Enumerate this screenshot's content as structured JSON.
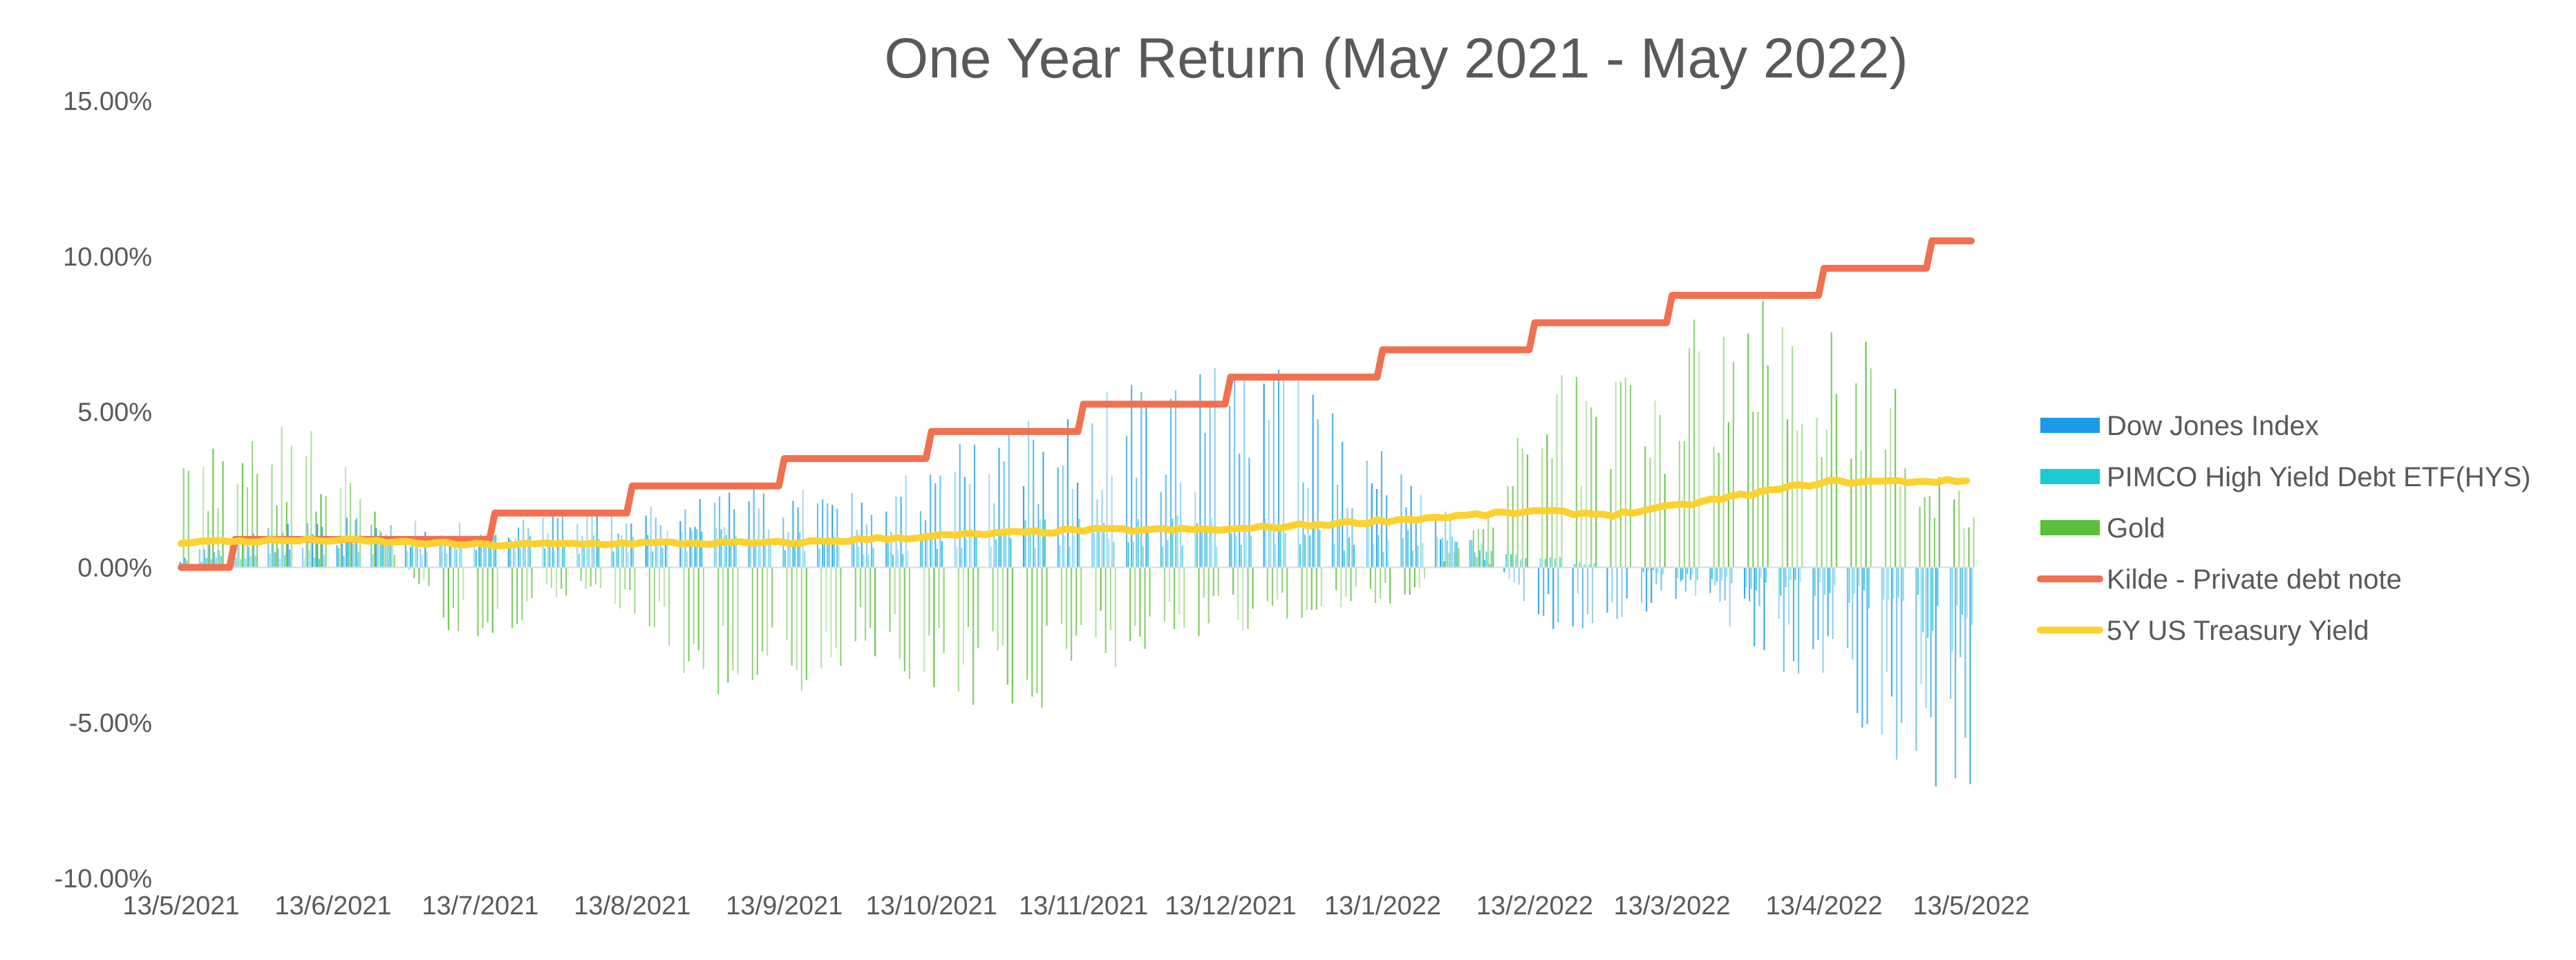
{
  "chart_data": {
    "type": "bar",
    "title": "One Year Return (May 2021 - May 2022)",
    "xlabel": "",
    "ylabel": "",
    "ylim": [
      -10,
      15
    ],
    "y_ticks": [
      {
        "value": 15,
        "label": "15.00%"
      },
      {
        "value": 10,
        "label": "10.00%"
      },
      {
        "value": 5,
        "label": "5.00%"
      },
      {
        "value": 0,
        "label": "0.00%"
      },
      {
        "value": -5,
        "label": "-5.00%"
      },
      {
        "value": -10,
        "label": "-10.00%"
      }
    ],
    "x_ticks": [
      "13/5/2021",
      "13/6/2021",
      "13/7/2021",
      "13/8/2021",
      "13/9/2021",
      "13/10/2021",
      "13/11/2021",
      "13/12/2021",
      "13/1/2022",
      "13/2/2022",
      "13/3/2022",
      "13/4/2022",
      "13/5/2022"
    ],
    "grid": false,
    "legend_position": "right",
    "series": [
      {
        "name": "Dow Jones Index",
        "kind": "bar",
        "color": "#1a9bea",
        "values_by_month": [
          0.4,
          1.5,
          1.2,
          1.6,
          2.2,
          2.0,
          4.0,
          5.2,
          5.6,
          2.5,
          -2.0,
          -0.8,
          -4.0,
          -6.6
        ]
      },
      {
        "name": "PIMCO High Yield Debt ETF(HYS)",
        "kind": "bar",
        "color": "#1ec9d4",
        "values_by_month": [
          0.2,
          0.6,
          0.9,
          0.9,
          1.2,
          0.8,
          1.3,
          1.5,
          1.4,
          1.0,
          0.3,
          -0.4,
          -1.0,
          -2.5
        ]
      },
      {
        "name": "Gold",
        "kind": "bar",
        "color": "#5cbf3a",
        "values_by_month": [
          3.2,
          4.0,
          -2.4,
          -0.5,
          -4.2,
          -2.5,
          -4.4,
          -2.2,
          -1.6,
          -0.8,
          5.5,
          7.0,
          7.5,
          1.5
        ]
      },
      {
        "name": "Kilde - Private debt note",
        "kind": "line",
        "color": "#f07050",
        "x": [
          "13/5/2021",
          "24/5/2021",
          "14/6/2021",
          "16/7/2021",
          "13/8/2021",
          "13/9/2021",
          "13/10/2021",
          "13/11/2021",
          "13/12/2021",
          "13/1/2022",
          "13/2/2022",
          "13/3/2022",
          "13/4/2022",
          "5/5/2022",
          "13/5/2022"
        ],
        "y": [
          0.0,
          0.9,
          0.9,
          1.75,
          2.62,
          3.5,
          4.37,
          5.25,
          6.12,
          7.0,
          7.87,
          8.75,
          9.62,
          10.5,
          10.5
        ]
      },
      {
        "name": "5Y US Treasury Yield",
        "kind": "line",
        "color": "#fdd12f",
        "x": [
          "13/5/2021",
          "13/6/2021",
          "13/7/2021",
          "13/8/2021",
          "13/9/2021",
          "13/10/2021",
          "13/11/2021",
          "13/12/2021",
          "13/1/2022",
          "13/2/2022",
          "1/3/2022",
          "13/3/2022",
          "13/4/2022",
          "13/5/2022"
        ],
        "y": [
          0.82,
          0.88,
          0.72,
          0.78,
          0.78,
          1.0,
          1.2,
          1.22,
          1.5,
          1.8,
          1.7,
          1.95,
          2.75,
          2.78
        ]
      }
    ]
  }
}
